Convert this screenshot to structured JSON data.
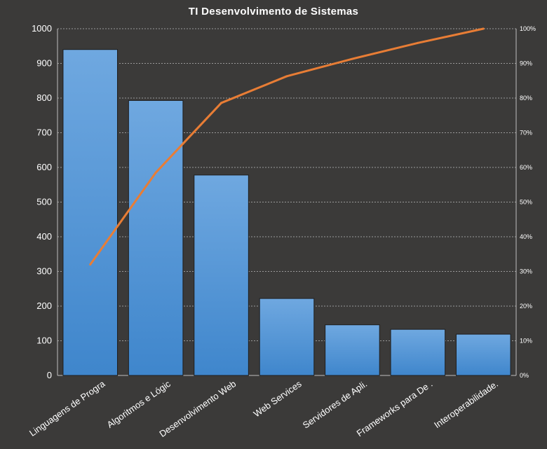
{
  "chart_data": {
    "type": "bar",
    "title": "TI Desenvolvimento  de Sistemas",
    "categories": [
      "Linguagens de Progra",
      "Algoritmos e Lógic",
      "Desenvolvimento Web",
      "Web Services",
      "Servidores de Apli.",
      "Frameworks  para De .",
      "Interoperabilidade."
    ],
    "series": [
      {
        "type": "bar",
        "axis": "left",
        "values": [
          940,
          793,
          578,
          222,
          146,
          133,
          119
        ]
      },
      {
        "type": "line",
        "axis": "right",
        "values": [
          32,
          58.5,
          78.6,
          86.3,
          91.3,
          95.9,
          100
        ]
      }
    ],
    "y_left": {
      "ylim": [
        0,
        1000
      ],
      "ticks": [
        "0",
        "100",
        "200",
        "300",
        "400",
        "500",
        "600",
        "700",
        "800",
        "900",
        "1000"
      ]
    },
    "y_right": {
      "ylim": [
        0,
        100
      ],
      "ticks": [
        "0%",
        "10%",
        "20%",
        "30%",
        "40%",
        "50%",
        "60%",
        "70%",
        "80%",
        "90%",
        "100%"
      ]
    },
    "grid": true,
    "legend": "none",
    "colors": {
      "background": "#3b3a39",
      "bar_top": "#6fa8e0",
      "bar_bottom": "#3f86cc",
      "line": "#e87d35",
      "grid": "#9a9a9a",
      "text": "#ffffff"
    }
  }
}
